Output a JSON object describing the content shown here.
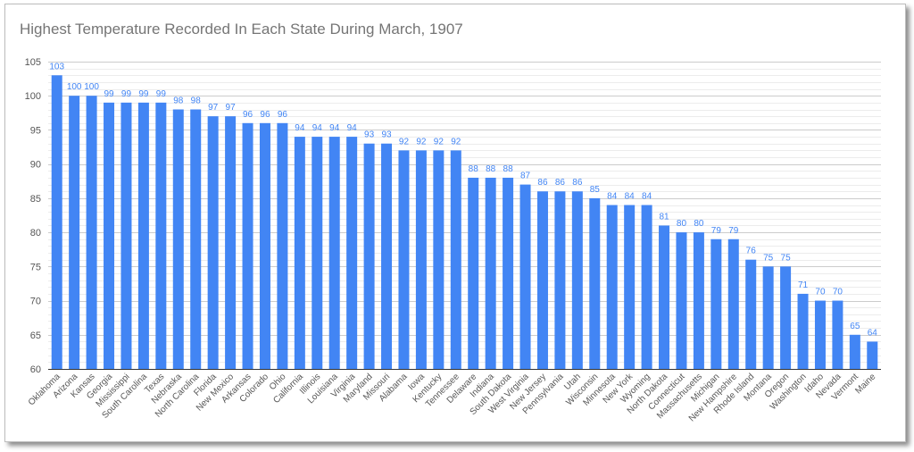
{
  "chart_data": {
    "type": "bar",
    "title": "Highest Temperature Recorded In Each State During March, 1907",
    "xlabel": "",
    "ylabel": "",
    "ylim": [
      60,
      105
    ],
    "yticks": [
      60,
      65,
      70,
      75,
      80,
      85,
      90,
      95,
      100,
      105
    ],
    "grid": true,
    "legend": "none",
    "bar_color": "#4285f4",
    "categories": [
      "Oklahoma",
      "Arizona",
      "Kansas",
      "Georgia",
      "Mississippi",
      "South Carolina",
      "Texas",
      "Nebraska",
      "North Carolina",
      "Florida",
      "New Mexico",
      "Arkansas",
      "Colorado",
      "Ohio",
      "California",
      "Illinois",
      "Louisiana",
      "Virginia",
      "Maryland",
      "Missouri",
      "Alabama",
      "Iowa",
      "Kentucky",
      "Tennessee",
      "Delaware",
      "Indiana",
      "South Dakota",
      "West Virginia",
      "New Jersey",
      "Pennsylvania",
      "Utah",
      "Wisconsin",
      "Minnesota",
      "New York",
      "Wyoming",
      "North Dakota",
      "Connecticut",
      "Massachusetts",
      "Michigan",
      "New Hampshire",
      "Rhode Island",
      "Montana",
      "Oregon",
      "Washington",
      "Idaho",
      "Nevada",
      "Vermont",
      "Maine"
    ],
    "values": [
      103,
      100,
      100,
      99,
      99,
      99,
      99,
      98,
      98,
      97,
      97,
      96,
      96,
      96,
      94,
      94,
      94,
      94,
      93,
      93,
      92,
      92,
      92,
      92,
      88,
      88,
      88,
      87,
      86,
      86,
      86,
      85,
      84,
      84,
      84,
      81,
      80,
      80,
      79,
      79,
      76,
      75,
      75,
      71,
      70,
      70,
      65,
      64
    ]
  }
}
